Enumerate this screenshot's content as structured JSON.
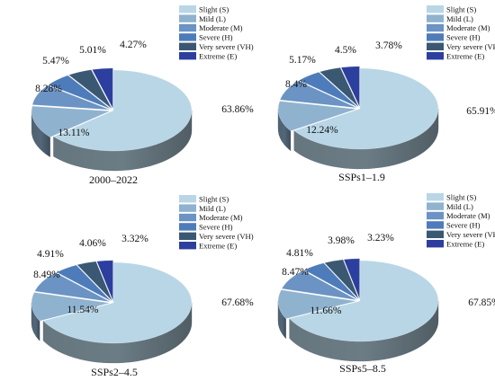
{
  "colors": {
    "slight": "#b9d6e6",
    "mild": "#8fb2cf",
    "moderate": "#6b93c3",
    "severe": "#4e7cba",
    "very_severe": "#3b5873",
    "extreme": "#2c3f9e"
  },
  "chart_data": [
    {
      "type": "pie",
      "style": "3d",
      "title": "2000–2022",
      "legend_position": "top-right",
      "categories": [
        "Slight (S)",
        "Mild (L)",
        "Moderate (M)",
        "Severe (H)",
        "Very severe (VH)",
        "Extreme (E)"
      ],
      "values": [
        63.86,
        13.11,
        8.28,
        5.47,
        5.01,
        4.27
      ],
      "value_labels": [
        "63.86%",
        "13.11%",
        "8.28%",
        "5.47%",
        "5.01%",
        "4.27%"
      ]
    },
    {
      "type": "pie",
      "style": "3d",
      "title": "SSPs1–1.9",
      "legend_position": "top-right",
      "categories": [
        "Slight (S)",
        "Mild (L)",
        "Moderate (M)",
        "Severe (H)",
        "Very severe (VH)",
        "Extreme (E)"
      ],
      "values": [
        65.91,
        12.24,
        8.4,
        5.17,
        4.5,
        3.78
      ],
      "value_labels": [
        "65.91%",
        "12.24%",
        "8.4%",
        "5.17%",
        "4.5%",
        "3.78%"
      ]
    },
    {
      "type": "pie",
      "style": "3d",
      "title": "SSPs2–4.5",
      "legend_position": "top-right",
      "categories": [
        "Slight (S)",
        "Mild (L)",
        "Moderate (M)",
        "Severe (H)",
        "Very severe (VH)",
        "Extreme (E)"
      ],
      "values": [
        67.68,
        11.54,
        8.49,
        4.91,
        4.06,
        3.32
      ],
      "value_labels": [
        "67.68%",
        "11.54%",
        "8.49%",
        "4.91%",
        "4.06%",
        "3.32%"
      ]
    },
    {
      "type": "pie",
      "style": "3d",
      "title": "SSPs5–8.5",
      "legend_position": "top-right",
      "categories": [
        "Slight (S)",
        "Mild (L)",
        "Moderate (M)",
        "Severe (H)",
        "Very severe (VH)",
        "Extreme (E)"
      ],
      "values": [
        67.85,
        11.66,
        8.47,
        4.81,
        3.98,
        3.23
      ],
      "value_labels": [
        "67.85%",
        "11.66%",
        "8.47%",
        "4.81%",
        "3.98%",
        "3.23%"
      ]
    }
  ]
}
